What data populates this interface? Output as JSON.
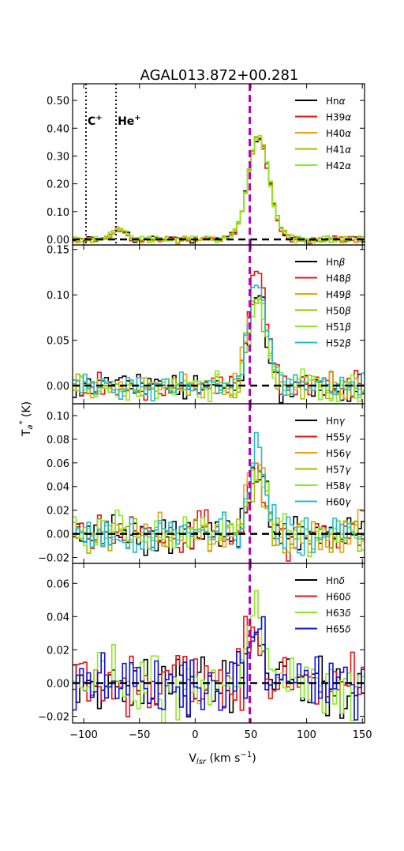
{
  "chart_data": {
    "type": "line",
    "title": "AGAL013.872+00.281",
    "xlabel": "V",
    "xlabel_sub": "lsr",
    "xlabel_unit": "(km s",
    "xlabel_unit_exp": "−1",
    "xlabel_unit_close": ")",
    "ylabel": "T",
    "ylabel_sub": "a",
    "ylabel_sup": "*",
    "ylabel_unit": "(K)",
    "xlim": [
      -110,
      152
    ],
    "x_ticks": [
      -100,
      -50,
      0,
      50,
      100,
      150
    ],
    "x_tick_labels": [
      "−100",
      "−50",
      "0",
      "50",
      "100",
      "150"
    ],
    "vline_velocity": 49,
    "vline_color": "#bb00bb",
    "zero_line_color": "#000000",
    "grid": false,
    "legend_position": "top-right",
    "line_markers": [
      {
        "velocity": -98,
        "label": "C",
        "sup": "+"
      },
      {
        "velocity": -71,
        "label": "He",
        "sup": "+"
      }
    ],
    "panels": [
      {
        "id": "alpha",
        "ylim": [
          -0.02,
          0.56
        ],
        "y_ticks": [
          0.0,
          0.1,
          0.2,
          0.3,
          0.4,
          0.5
        ],
        "y_tick_labels": [
          "0.00",
          "0.10",
          "0.20",
          "0.30",
          "0.40",
          "0.50"
        ],
        "noise": 0.009,
        "features": [
          {
            "center": 57,
            "amp": 0.37,
            "sigma": 9.5
          },
          {
            "center": -68,
            "amp": 0.035,
            "sigma": 6
          }
        ],
        "series": [
          {
            "name": "Hn",
            "greek": "α",
            "color": "#000000",
            "scale": 1.0
          },
          {
            "name": "H39",
            "greek": "α",
            "color": "#ee1111",
            "scale": 1.0
          },
          {
            "name": "H40",
            "greek": "α",
            "color": "#f0a010",
            "scale": 1.0
          },
          {
            "name": "H41",
            "greek": "α",
            "color": "#a8b800",
            "scale": 1.0
          },
          {
            "name": "H42",
            "greek": "α",
            "color": "#88ee22",
            "scale": 1.0
          }
        ]
      },
      {
        "id": "beta",
        "ylim": [
          -0.02,
          0.155
        ],
        "y_ticks": [
          0.0,
          0.05,
          0.1,
          0.15
        ],
        "y_tick_labels": [
          "0.00",
          "0.05",
          "0.10",
          "0.15"
        ],
        "noise": 0.011,
        "features": [
          {
            "center": 56,
            "amp": 0.105,
            "sigma": 8
          }
        ],
        "series": [
          {
            "name": "Hn",
            "greek": "β",
            "color": "#000000",
            "scale": 1.0
          },
          {
            "name": "H48",
            "greek": "β",
            "color": "#ee1111",
            "scale": 1.2
          },
          {
            "name": "H49",
            "greek": "β",
            "color": "#f0a010",
            "scale": 1.0
          },
          {
            "name": "H50",
            "greek": "β",
            "color": "#a8b800",
            "scale": 0.9
          },
          {
            "name": "H51",
            "greek": "β",
            "color": "#88ee22",
            "scale": 0.85
          },
          {
            "name": "H52",
            "greek": "β",
            "color": "#22bbcc",
            "scale": 1.1
          }
        ]
      },
      {
        "id": "gamma",
        "ylim": [
          -0.025,
          0.11
        ],
        "y_ticks": [
          -0.02,
          0.0,
          0.02,
          0.04,
          0.06,
          0.08,
          0.1
        ],
        "y_tick_labels": [
          "−0.02",
          "0.00",
          "0.02",
          "0.04",
          "0.06",
          "0.08",
          "0.10"
        ],
        "noise": 0.012,
        "features": [
          {
            "center": 56,
            "amp": 0.058,
            "sigma": 7
          }
        ],
        "series": [
          {
            "name": "Hn",
            "greek": "γ",
            "color": "#000000",
            "scale": 1.0
          },
          {
            "name": "H55",
            "greek": "γ",
            "color": "#ee1111",
            "scale": 1.0
          },
          {
            "name": "H56",
            "greek": "γ",
            "color": "#f0a010",
            "scale": 1.1
          },
          {
            "name": "H57",
            "greek": "γ",
            "color": "#a8b800",
            "scale": 0.9
          },
          {
            "name": "H58",
            "greek": "γ",
            "color": "#88ee22",
            "scale": 1.0
          },
          {
            "name": "H60",
            "greek": "γ",
            "color": "#22bbcc",
            "scale": 1.2
          }
        ]
      },
      {
        "id": "delta",
        "ylim": [
          -0.024,
          0.072
        ],
        "y_ticks": [
          -0.02,
          0.0,
          0.02,
          0.04,
          0.06
        ],
        "y_tick_labels": [
          "−0.02",
          "0.00",
          "0.02",
          "0.04",
          "0.06"
        ],
        "noise": 0.014,
        "features": [
          {
            "center": 54,
            "amp": 0.035,
            "sigma": 7
          }
        ],
        "series": [
          {
            "name": "Hn",
            "greek": "δ",
            "color": "#000000",
            "scale": 1.0
          },
          {
            "name": "H60",
            "greek": "δ",
            "color": "#ee1111",
            "scale": 1.1
          },
          {
            "name": "H63",
            "greek": "δ",
            "color": "#88ee22",
            "scale": 1.3
          },
          {
            "name": "H65",
            "greek": "δ",
            "color": "#1111dd",
            "scale": 1.0
          }
        ]
      }
    ]
  }
}
